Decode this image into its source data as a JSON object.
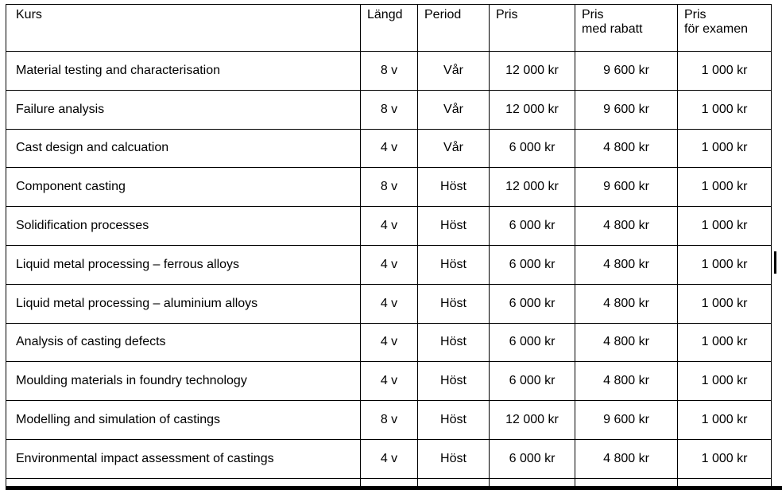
{
  "colors": {
    "background": "#ffffff",
    "text": "#000000",
    "border": "#000000"
  },
  "table": {
    "columns": [
      "Kurs",
      "Längd",
      "Period",
      "Pris",
      "Pris\nmed rabatt",
      "Pris\nför examen"
    ],
    "rows": [
      [
        "Material testing and characterisation",
        "8 v",
        "Vår",
        "12 000 kr",
        "9 600 kr",
        "1 000 kr"
      ],
      [
        "Failure analysis",
        "8 v",
        "Vår",
        "12 000 kr",
        "9 600 kr",
        "1 000 kr"
      ],
      [
        "Cast design and calcuation",
        "4 v",
        "Vår",
        "6 000 kr",
        "4 800 kr",
        "1 000 kr"
      ],
      [
        "Component casting",
        "8 v",
        "Höst",
        "12 000 kr",
        "9 600 kr",
        "1 000 kr"
      ],
      [
        "Solidification processes",
        "4 v",
        "Höst",
        "6 000 kr",
        "4 800 kr",
        "1 000 kr"
      ],
      [
        "Liquid metal processing – ferrous alloys",
        "4 v",
        "Höst",
        "6 000 kr",
        "4 800 kr",
        "1 000 kr"
      ],
      [
        "Liquid metal processing – aluminium alloys",
        "4 v",
        "Höst",
        "6 000 kr",
        "4 800 kr",
        "1 000 kr"
      ],
      [
        "Analysis of casting defects",
        "4 v",
        "Höst",
        "6 000 kr",
        "4 800 kr",
        "1 000 kr"
      ],
      [
        "Moulding materials in foundry technology",
        "4 v",
        "Höst",
        "6 000 kr",
        "4 800 kr",
        "1 000 kr"
      ],
      [
        "Modelling and simulation of castings",
        "8 v",
        "Höst",
        "12 000 kr",
        "9 600 kr",
        "1 000 kr"
      ],
      [
        "Environmental impact assessment of castings",
        "4 v",
        "Höst",
        "6 000 kr",
        "4 800 kr",
        "1 000 kr"
      ]
    ]
  }
}
